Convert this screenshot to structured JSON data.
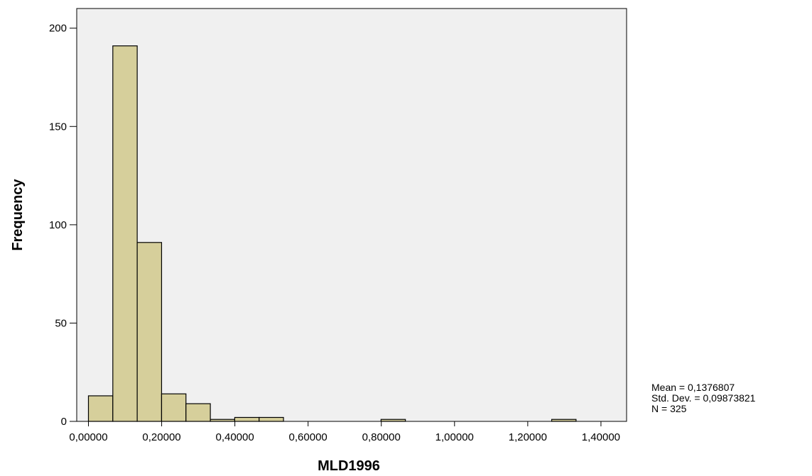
{
  "chart_data": {
    "type": "bar",
    "title": "",
    "xlabel": "MLD1996",
    "ylabel": "Frequency",
    "bin_width": 0.0666,
    "bins": [
      {
        "start": 0.0,
        "end": 0.0666,
        "count": 13
      },
      {
        "start": 0.0666,
        "end": 0.1332,
        "count": 191
      },
      {
        "start": 0.1332,
        "end": 0.1998,
        "count": 91
      },
      {
        "start": 0.1998,
        "end": 0.2664,
        "count": 14
      },
      {
        "start": 0.2664,
        "end": 0.333,
        "count": 9
      },
      {
        "start": 0.333,
        "end": 0.3996,
        "count": 1
      },
      {
        "start": 0.3996,
        "end": 0.4662,
        "count": 2
      },
      {
        "start": 0.4662,
        "end": 0.5328,
        "count": 2
      },
      {
        "start": 0.5328,
        "end": 0.5994,
        "count": 0
      },
      {
        "start": 0.5994,
        "end": 0.666,
        "count": 0
      },
      {
        "start": 0.666,
        "end": 0.7326,
        "count": 0
      },
      {
        "start": 0.7326,
        "end": 0.7992,
        "count": 0
      },
      {
        "start": 0.7992,
        "end": 0.8658,
        "count": 1
      },
      {
        "start": 0.8658,
        "end": 0.9324,
        "count": 0
      },
      {
        "start": 0.9324,
        "end": 0.999,
        "count": 0
      },
      {
        "start": 0.999,
        "end": 1.0656,
        "count": 0
      },
      {
        "start": 1.0656,
        "end": 1.1322,
        "count": 0
      },
      {
        "start": 1.1322,
        "end": 1.1988,
        "count": 0
      },
      {
        "start": 1.1988,
        "end": 1.2654,
        "count": 0
      },
      {
        "start": 1.2654,
        "end": 1.332,
        "count": 1
      }
    ],
    "xlim": [
      -0.032,
      1.47
    ],
    "ylim": [
      0,
      210
    ],
    "x_ticks": [
      0.0,
      0.2,
      0.4,
      0.6,
      0.8,
      1.0,
      1.2,
      1.4
    ],
    "x_tick_labels": [
      "0,00000",
      "0,20000",
      "0,40000",
      "0,60000",
      "0,80000",
      "1,00000",
      "1,20000",
      "1,40000"
    ],
    "y_ticks": [
      0,
      50,
      100,
      150,
      200
    ],
    "y_tick_labels": [
      "0",
      "50",
      "100",
      "150",
      "200"
    ],
    "grid": false,
    "stats": {
      "mean": "Mean = 0,1376807",
      "std_dev": "Std. Dev. = 0,09873821",
      "n": "N = 325"
    },
    "colors": {
      "plot_background": "#f0f0f0",
      "bar_fill": "#d6cf9b",
      "bar_stroke": "#000000"
    }
  }
}
